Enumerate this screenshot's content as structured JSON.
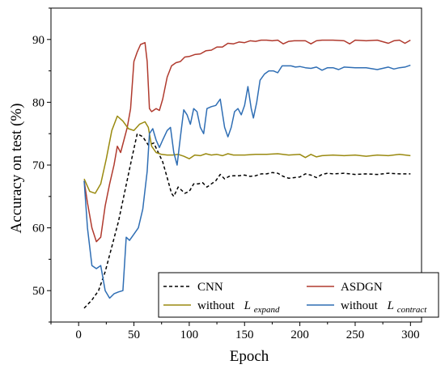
{
  "chart_data": {
    "type": "line",
    "xlabel": "Epoch",
    "ylabel": "Accuracy on test (%)",
    "xlim": [
      -25,
      310
    ],
    "ylim": [
      45,
      95
    ],
    "xticks": [
      0,
      50,
      100,
      150,
      200,
      250,
      300
    ],
    "yticks": [
      50,
      60,
      70,
      80,
      90
    ],
    "grid": false,
    "legend_placement": "bottom-right",
    "series": [
      {
        "name": "CNN",
        "color": "#000000",
        "dash": "dashed",
        "points": [
          [
            5,
            47.2
          ],
          [
            12,
            48.5
          ],
          [
            18,
            50
          ],
          [
            24,
            53
          ],
          [
            30,
            57
          ],
          [
            36,
            61
          ],
          [
            42,
            66
          ],
          [
            48,
            71
          ],
          [
            53,
            75
          ],
          [
            58,
            74.5
          ],
          [
            63,
            73.2
          ],
          [
            68,
            73.5
          ],
          [
            72,
            72
          ],
          [
            76,
            70.5
          ],
          [
            80,
            68
          ],
          [
            84,
            65.5
          ],
          [
            86,
            65
          ],
          [
            90,
            66.5
          ],
          [
            93,
            66
          ],
          [
            96,
            65.5
          ],
          [
            100,
            65.8
          ],
          [
            104,
            67
          ],
          [
            108,
            67
          ],
          [
            112,
            67.2
          ],
          [
            116,
            66.5
          ],
          [
            120,
            67
          ],
          [
            124,
            67.5
          ],
          [
            128,
            68.5
          ],
          [
            132,
            67.8
          ],
          [
            136,
            68.2
          ],
          [
            140,
            68.3
          ],
          [
            145,
            68.3
          ],
          [
            150,
            68.4
          ],
          [
            155,
            68.2
          ],
          [
            160,
            68.3
          ],
          [
            165,
            68.6
          ],
          [
            170,
            68.6
          ],
          [
            175,
            68.8
          ],
          [
            180,
            68.7
          ],
          [
            185,
            68.2
          ],
          [
            190,
            67.9
          ],
          [
            195,
            68
          ],
          [
            200,
            68.1
          ],
          [
            205,
            68.6
          ],
          [
            210,
            68.4
          ],
          [
            215,
            68
          ],
          [
            220,
            68.5
          ],
          [
            225,
            68.7
          ],
          [
            230,
            68.6
          ],
          [
            240,
            68.7
          ],
          [
            250,
            68.5
          ],
          [
            260,
            68.6
          ],
          [
            270,
            68.5
          ],
          [
            280,
            68.7
          ],
          [
            290,
            68.6
          ],
          [
            300,
            68.6
          ]
        ]
      },
      {
        "name": "ASDGN",
        "color": "#b03a2e",
        "dash": "solid",
        "points": [
          [
            5,
            67.5
          ],
          [
            8,
            64
          ],
          [
            12,
            60
          ],
          [
            16,
            57.8
          ],
          [
            20,
            58.5
          ],
          [
            24,
            63.5
          ],
          [
            28,
            67
          ],
          [
            32,
            70
          ],
          [
            35,
            73
          ],
          [
            38,
            72
          ],
          [
            41,
            74
          ],
          [
            44,
            76
          ],
          [
            47,
            79
          ],
          [
            50,
            86.5
          ],
          [
            53,
            88
          ],
          [
            56,
            89.2
          ],
          [
            60,
            89.5
          ],
          [
            62,
            86.5
          ],
          [
            64,
            79
          ],
          [
            66,
            78.5
          ],
          [
            70,
            79
          ],
          [
            73,
            78.7
          ],
          [
            76,
            80.5
          ],
          [
            80,
            84
          ],
          [
            84,
            85.8
          ],
          [
            88,
            86.3
          ],
          [
            92,
            86.5
          ],
          [
            96,
            87.2
          ],
          [
            100,
            87.3
          ],
          [
            105,
            87.6
          ],
          [
            110,
            87.7
          ],
          [
            115,
            88.2
          ],
          [
            120,
            88.3
          ],
          [
            125,
            88.8
          ],
          [
            130,
            88.8
          ],
          [
            135,
            89.4
          ],
          [
            140,
            89.3
          ],
          [
            145,
            89.6
          ],
          [
            150,
            89.5
          ],
          [
            155,
            89.8
          ],
          [
            160,
            89.7
          ],
          [
            165,
            89.9
          ],
          [
            170,
            89.9
          ],
          [
            175,
            89.8
          ],
          [
            180,
            89.9
          ],
          [
            185,
            89.3
          ],
          [
            190,
            89.7
          ],
          [
            195,
            89.8
          ],
          [
            200,
            89.8
          ],
          [
            205,
            89.8
          ],
          [
            210,
            89.3
          ],
          [
            215,
            89.8
          ],
          [
            220,
            89.9
          ],
          [
            230,
            89.9
          ],
          [
            240,
            89.8
          ],
          [
            245,
            89.3
          ],
          [
            250,
            89.9
          ],
          [
            260,
            89.8
          ],
          [
            270,
            89.9
          ],
          [
            280,
            89.4
          ],
          [
            285,
            89.8
          ],
          [
            290,
            89.9
          ],
          [
            295,
            89.4
          ],
          [
            300,
            89.9
          ]
        ]
      },
      {
        "name": "without L_expand",
        "color": "#9a8a10",
        "dash": "solid",
        "points": [
          [
            5,
            67.8
          ],
          [
            10,
            65.8
          ],
          [
            15,
            65.5
          ],
          [
            20,
            67
          ],
          [
            25,
            71
          ],
          [
            30,
            75.5
          ],
          [
            35,
            77.8
          ],
          [
            40,
            77
          ],
          [
            45,
            75.8
          ],
          [
            50,
            75.5
          ],
          [
            55,
            76.5
          ],
          [
            60,
            76.9
          ],
          [
            63,
            76
          ],
          [
            66,
            73
          ],
          [
            70,
            72
          ],
          [
            75,
            71.7
          ],
          [
            80,
            71.6
          ],
          [
            85,
            71.6
          ],
          [
            90,
            71.7
          ],
          [
            95,
            71.4
          ],
          [
            100,
            71
          ],
          [
            105,
            71.6
          ],
          [
            110,
            71.5
          ],
          [
            115,
            71.8
          ],
          [
            120,
            71.6
          ],
          [
            125,
            71.7
          ],
          [
            130,
            71.5
          ],
          [
            135,
            71.8
          ],
          [
            140,
            71.6
          ],
          [
            150,
            71.6
          ],
          [
            160,
            71.7
          ],
          [
            170,
            71.7
          ],
          [
            180,
            71.8
          ],
          [
            190,
            71.6
          ],
          [
            200,
            71.7
          ],
          [
            205,
            71.2
          ],
          [
            210,
            71.7
          ],
          [
            215,
            71.3
          ],
          [
            220,
            71.5
          ],
          [
            230,
            71.6
          ],
          [
            240,
            71.5
          ],
          [
            250,
            71.6
          ],
          [
            260,
            71.4
          ],
          [
            270,
            71.6
          ],
          [
            280,
            71.5
          ],
          [
            290,
            71.7
          ],
          [
            300,
            71.5
          ]
        ]
      },
      {
        "name": "without L_contract",
        "color": "#2f6eb4",
        "dash": "solid",
        "points": [
          [
            5,
            67.5
          ],
          [
            8,
            60
          ],
          [
            12,
            54
          ],
          [
            16,
            53.5
          ],
          [
            20,
            54
          ],
          [
            24,
            50
          ],
          [
            28,
            48.8
          ],
          [
            32,
            49.5
          ],
          [
            36,
            49.8
          ],
          [
            40,
            50
          ],
          [
            43,
            58.5
          ],
          [
            46,
            58
          ],
          [
            50,
            59
          ],
          [
            54,
            60
          ],
          [
            58,
            63
          ],
          [
            62,
            69
          ],
          [
            64,
            75
          ],
          [
            67,
            75.8
          ],
          [
            70,
            74
          ],
          [
            73,
            72.8
          ],
          [
            76,
            74
          ],
          [
            80,
            75.5
          ],
          [
            83,
            76
          ],
          [
            86,
            72
          ],
          [
            89,
            70
          ],
          [
            92,
            74.5
          ],
          [
            95,
            78.8
          ],
          [
            98,
            78
          ],
          [
            101,
            76.5
          ],
          [
            104,
            79
          ],
          [
            107,
            78.5
          ],
          [
            110,
            76
          ],
          [
            113,
            75
          ],
          [
            116,
            79
          ],
          [
            120,
            79.3
          ],
          [
            124,
            79.5
          ],
          [
            128,
            80.5
          ],
          [
            132,
            76
          ],
          [
            135,
            74.5
          ],
          [
            138,
            76
          ],
          [
            141,
            78.5
          ],
          [
            144,
            79
          ],
          [
            147,
            78
          ],
          [
            150,
            79.5
          ],
          [
            153,
            82.5
          ],
          [
            156,
            79
          ],
          [
            158,
            77.5
          ],
          [
            161,
            80
          ],
          [
            164,
            83.5
          ],
          [
            168,
            84.5
          ],
          [
            172,
            85
          ],
          [
            176,
            85
          ],
          [
            180,
            84.7
          ],
          [
            184,
            85.8
          ],
          [
            188,
            85.8
          ],
          [
            192,
            85.8
          ],
          [
            196,
            85.6
          ],
          [
            200,
            85.7
          ],
          [
            205,
            85.5
          ],
          [
            210,
            85.4
          ],
          [
            215,
            85.6
          ],
          [
            220,
            85.1
          ],
          [
            225,
            85.5
          ],
          [
            230,
            85.5
          ],
          [
            235,
            85.2
          ],
          [
            240,
            85.6
          ],
          [
            250,
            85.5
          ],
          [
            260,
            85.5
          ],
          [
            270,
            85.2
          ],
          [
            280,
            85.6
          ],
          [
            285,
            85.3
          ],
          [
            290,
            85.5
          ],
          [
            295,
            85.6
          ],
          [
            300,
            85.9
          ]
        ]
      }
    ],
    "legend": {
      "cnn": "CNN",
      "asdgn": "ASDGN",
      "without_prefix": "without",
      "L": "L",
      "sub_expand": "expand",
      "sub_contract": "contract"
    }
  }
}
